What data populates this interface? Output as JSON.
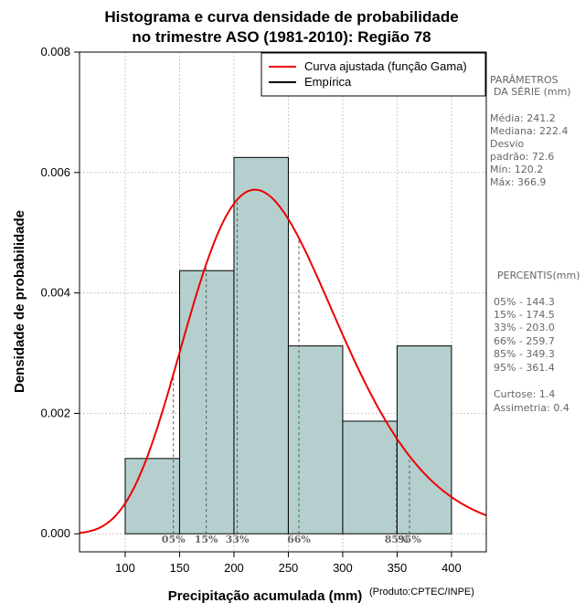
{
  "chart_data": {
    "type": "bar",
    "title_lines": [
      "Histograma e curva densidade de probabilidade",
      "no trimestre ASO (1981-2010): Região 78"
    ],
    "xlabel": "Precipitação acumulada (mm)",
    "ylabel": "Densidade de probabilidade",
    "credit": "(Produto:CPTEC/INPE)",
    "xlim": [
      58,
      432
    ],
    "ylim": [
      -0.0003,
      0.008
    ],
    "x_ticks": [
      100,
      150,
      200,
      250,
      300,
      350,
      400
    ],
    "y_ticks": [
      "0.000",
      "0.002",
      "0.004",
      "0.006",
      "0.008"
    ],
    "grid": true,
    "bins": [
      {
        "from": 100,
        "to": 150,
        "density": 0.00125
      },
      {
        "from": 150,
        "to": 200,
        "density": 0.00437
      },
      {
        "from": 200,
        "to": 250,
        "density": 0.00625
      },
      {
        "from": 250,
        "to": 300,
        "density": 0.00312
      },
      {
        "from": 300,
        "to": 350,
        "density": 0.00187
      },
      {
        "from": 350,
        "to": 400,
        "density": 0.00312
      }
    ],
    "curve": {
      "name": "Curva ajustada (função Gama)",
      "mean": 241.2,
      "sd": 72.6,
      "color": "#ee0000"
    },
    "legend": [
      {
        "label": "Curva ajustada (função Gama)",
        "color": "#ee0000"
      },
      {
        "label": "Empírica",
        "color": "#000000"
      }
    ],
    "percentile_marks": [
      {
        "label": "05%",
        "value": 144.3
      },
      {
        "label": "15%",
        "value": 174.5
      },
      {
        "label": "33%",
        "value": 203.0
      },
      {
        "label": "66%",
        "value": 259.7
      },
      {
        "label": "85%",
        "value": 349.3
      },
      {
        "label": "95%",
        "value": 361.4
      }
    ],
    "bar_color": "#b5cfcf"
  },
  "side_panel": {
    "params_title": [
      "PARÂMETROS",
      "DA SÉRIE (mm)"
    ],
    "params": [
      "Média:  241.2",
      "Mediana:  222.4",
      "Desvio",
      "padrão:  72.6",
      "Mín:  120.2",
      "Máx:  366.9"
    ],
    "percentis_title": "PERCENTIS(mm)",
    "percentis": [
      "05% -   144.3",
      "15% -   174.5",
      "33% -   203.0",
      "66% -   259.7",
      "85% -   349.3",
      "95% -   361.4"
    ],
    "stats": [
      "Curtose:  1.4",
      "Assimetria:  0.4"
    ]
  }
}
